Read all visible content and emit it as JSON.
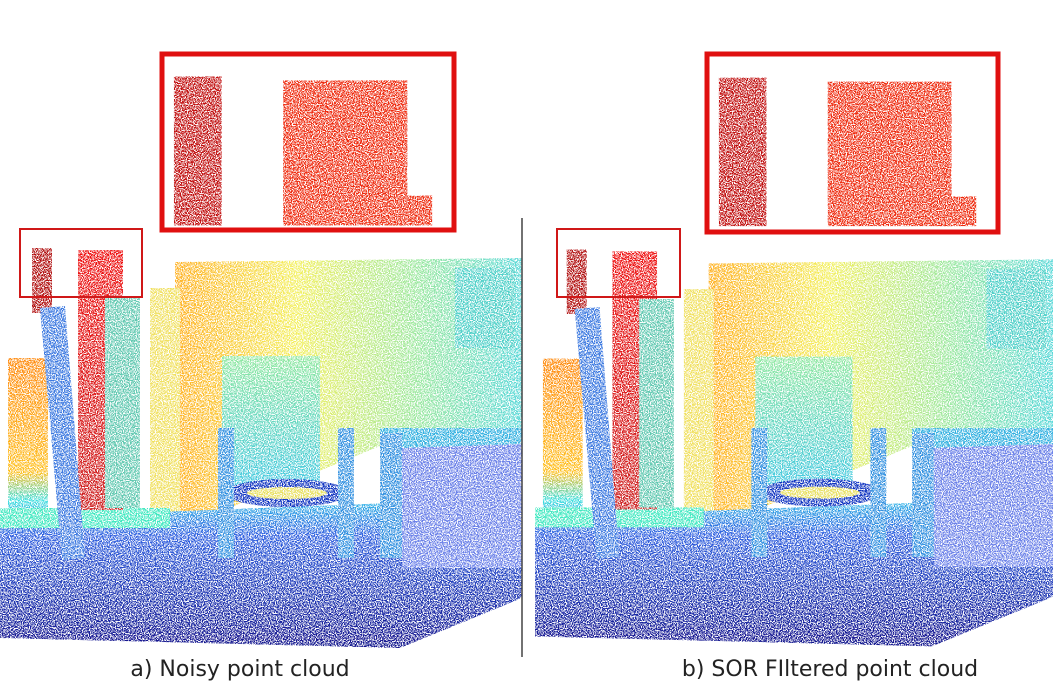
{
  "captions": {
    "left": "a) Noisy point cloud",
    "right": "b) SOR FIltered point cloud"
  }
}
